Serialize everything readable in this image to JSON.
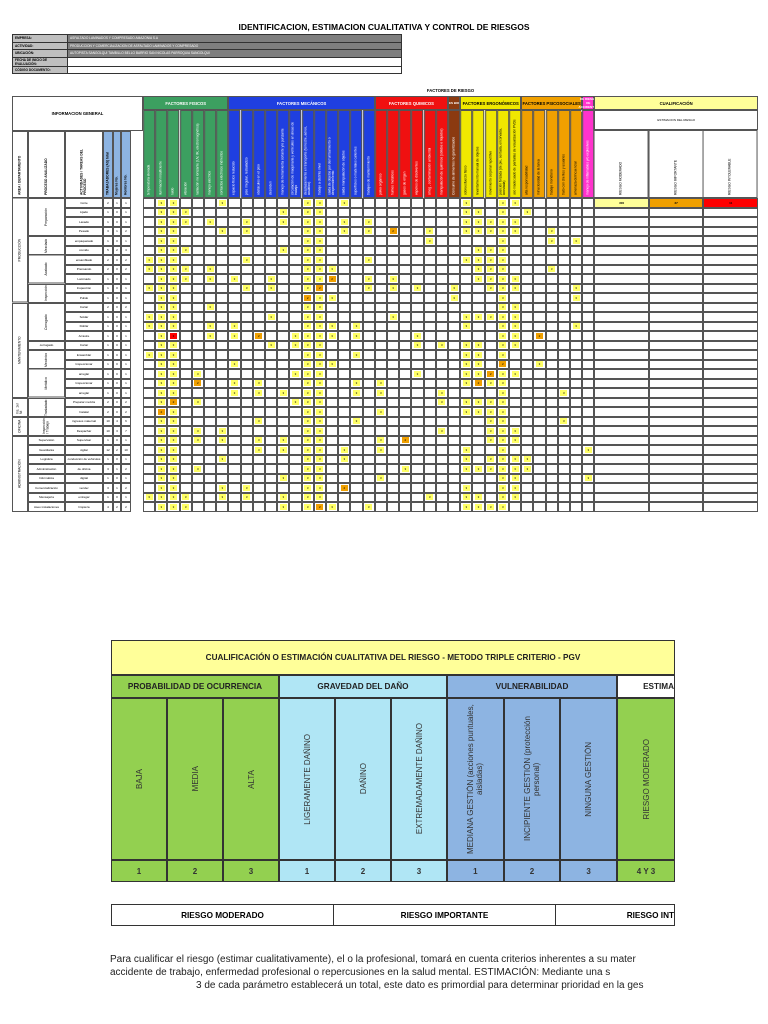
{
  "title": "IDENTIFICACION, ESTIMACION CUALITATIVA Y  CONTROL DE RIESGOS",
  "info_rows": [
    {
      "key": "EMPRESA:",
      "value": "ASFALTADO LAMINADOS Y COMPRESADO AMAZONIA S.A"
    },
    {
      "key": "ACTIVIDAD:",
      "value": "PRODUCCION Y COMERCIALIZACION DE ASFALTADO LAMINADOS Y COMPRESADO"
    },
    {
      "key": "UBICACIÓN:",
      "value": "AUTOPISTA SANGOLQUI TAMBILLO BELLO BARRIO SAN NICOLAS PARROQUIA SANGOLQUI"
    },
    {
      "key": "FECHA DE INICIO DE EVALUACIÓN:",
      "value": ""
    },
    {
      "key": "CÓDIGO DOCUMENTO:",
      "value": ""
    }
  ],
  "matrix": {
    "factores_title": "FACTORES DE RIESGO",
    "info_general": "INFORMACION GENERAL",
    "cualificacion": "CUALIFICACIÓN",
    "estimacion": "ESTIMACION DEL RIESGO",
    "left_headers": [
      "AREA / DEPARTAMENTO",
      "PROCESO ANALIZADO",
      "ACTIVIDADES / TAREAS DEL PROCESO",
      "TRABAJADORES (AS) total",
      "Mujeres No.",
      "Hombres No."
    ],
    "groups": [
      {
        "name": "FACTORES FISICOS",
        "color": "#3c9f60",
        "cols": [
          "temperatura elevada",
          "iluminación insuficiente",
          "ruido",
          "vibración",
          "radiación no ionizante (UV, IR, electromagnética)",
          "manejo eléctrico",
          "contactos eléctricos indirectos"
        ]
      },
      {
        "name": "FACTORES MECÁNICOS",
        "color": "#1f3fe0",
        "cols": [
          "espacio físico reducido",
          "piso irregular, resbaladizo",
          "obstáculos en el piso",
          "desorden",
          "manejo de herramienta cortante y/o punzante",
          "circulación de maquinaria y vehículos en áreas de trabajo",
          "desplazamiento en transporte (terrestre, aéreo, acuático)",
          "trabajo a distinto nivel",
          "caída de objetos por derrumbamiento o desprendimiento",
          "caída manipulación de objetos",
          "superficies o materiales calientes",
          "trabajos de mantenimiento"
        ]
      },
      {
        "name": "FACTORES QUIMICOS",
        "color": "#f01010",
        "cols": [
          "polvo orgánico",
          "humos metálicos",
          "gases de origen",
          "vapores de disolventes",
          "smog , contaminación ambiental",
          "manipulación de químicos (sólidos o líquidos)"
        ]
      },
      {
        "name": "ES BIO",
        "color": "#8b3a10",
        "cols": [
          "Consumo de alimentos no garantizados"
        ]
      },
      {
        "name": "FACTORES ERGONÓMICOS",
        "color": "#f0e800",
        "cols": [
          "sobreesfuerzo físico",
          "levantamiento manual de objetos",
          "movimiento corporal repetitivo",
          "posición forzada (de pie, sentada, encorvada, acostada)",
          "uso inadecuado de pantallas de visualización PVDs"
        ]
      },
      {
        "name": "FACTORES PSICOSOCIALES",
        "color": "#f0a000",
        "cols": [
          "alta responsabilidad",
          "minuciosidad de la tarea",
          "trabajo monótono",
          "trato con clientes y usuarios",
          "amenaza delincuencial"
        ]
      },
      {
        "name": "FACTORES DE RIESGO DE ACCIDENTES MAYORES",
        "color": "#ff33cc",
        "cols": [
          "manejo de inflamables y/o explosivos"
        ]
      }
    ],
    "estim_cols": [
      "RIESGO MODERADO",
      "RIESGO IMPORTANTE",
      "RIESGO INTOLERABLE"
    ],
    "estim_values": [
      "300",
      "27",
      "11"
    ],
    "areas": [
      {
        "name": "PRODUCCIÓN",
        "rows": 11
      },
      {
        "name": "MANTENIMIENTO",
        "rows": 10
      },
      {
        "name": "Ins. 1er Nt",
        "rows": 2
      },
      {
        "name": "OFICINA",
        "rows": 2
      },
      {
        "name": "ADMINISTRACIÓN",
        "rows": 8
      }
    ],
    "processes": [
      {
        "name": "Preparación",
        "rows": 4
      },
      {
        "name": "Mezclado",
        "rows": 2
      },
      {
        "name": "Acabado",
        "rows": 3
      },
      {
        "name": "Inspección",
        "rows": 2
      },
      {
        "name": "Corrugado",
        "rows": 4
      },
      {
        "name": "corrugado",
        "rows": 1
      },
      {
        "name": "Mecánico",
        "rows": 2
      },
      {
        "name": "Metálico",
        "rows": 3
      },
      {
        "name": "Trasladado",
        "rows": 2
      },
      {
        "name": "Inspección / Trabajo",
        "rows": 2
      },
      {
        "name": "Supervisión",
        "rows": 1
      },
      {
        "name": "Guardianía",
        "rows": 1
      },
      {
        "name": "Logística",
        "rows": 1
      },
      {
        "name": "Administración",
        "rows": 1
      },
      {
        "name": "Informática",
        "rows": 1
      },
      {
        "name": "Comercialización",
        "rows": 1
      },
      {
        "name": "Mensajería",
        "rows": 1
      },
      {
        "name": "Aseo instalaciones",
        "rows": 1
      }
    ],
    "activities": [
      "Corte",
      "Lijado",
      "Lavado",
      "Pesado",
      "empaquetado",
      "comido",
      "ensamblado",
      "Prensando",
      "Laminado",
      "Inspección",
      "Pulido",
      "Cortar",
      "Soldar",
      "Doblar",
      "Arrastre",
      "Cortar",
      "Ensamblar",
      "Inspeccionar",
      "arreglar",
      "Inspeccionar",
      "arreglar",
      "Preparar mezcla",
      "Instalar",
      "ingresos maternal",
      "Despachar",
      "Supervisar",
      "vigilar",
      "conducción de vehículos",
      "de oficina",
      "digital",
      "vender",
      "entregar",
      "limpieza"
    ],
    "workers": [
      [
        "2",
        "1",
        "1"
      ],
      [
        "1",
        "0",
        "1"
      ],
      [
        "1",
        "0",
        "1"
      ],
      [
        "3",
        "1",
        "2"
      ],
      [
        "1",
        "0",
        "1"
      ],
      [
        "5",
        "2",
        "3"
      ],
      [
        "2",
        "0",
        "2"
      ],
      [
        "2",
        "0",
        "2"
      ],
      [
        "1",
        "0",
        "1"
      ],
      [
        "1",
        "0",
        "1"
      ],
      [
        "1",
        "0",
        "1"
      ],
      [
        "2",
        "0",
        "2"
      ],
      [
        "1",
        "0",
        "1"
      ],
      [
        "1",
        "0",
        "1"
      ],
      [
        "1",
        "0",
        "1"
      ],
      [
        "1",
        "0",
        "1"
      ],
      [
        "1",
        "0",
        "1"
      ],
      [
        "1",
        "0",
        "1"
      ],
      [
        "1",
        "0",
        "1"
      ],
      [
        "1",
        "0",
        "1"
      ],
      [
        "1",
        "0",
        "1"
      ],
      [
        "2",
        "0",
        "2"
      ],
      [
        "2",
        "0",
        "2"
      ],
      [
        "10",
        "4",
        "6"
      ],
      [
        "10",
        "3",
        "7"
      ],
      [
        "1",
        "0",
        "1"
      ],
      [
        "12",
        "2",
        "10"
      ],
      [
        "1",
        "0",
        "1"
      ],
      [
        "3",
        "1",
        "2"
      ],
      [
        "1",
        "0",
        "1"
      ],
      [
        "3",
        "1",
        "2"
      ],
      [
        "1",
        "0",
        "1"
      ],
      [
        "4",
        "2",
        "2"
      ]
    ],
    "hazard_mark": "3",
    "hazard_mark_alt": "2"
  },
  "calificacion": {
    "title": "CUALIFICACIÓN O ESTIMACIÓN CUALITATIVA DEL RIESGO - METODO TRIPLE CRITERIO - PGV",
    "groups": [
      {
        "name": "PROBABILIDAD DE OCURRENCIA",
        "color": "#93d050",
        "items": [
          {
            "label": "BAJA",
            "score": "1"
          },
          {
            "label": "MEDIA",
            "score": "2"
          },
          {
            "label": "ALTA",
            "score": "3"
          }
        ]
      },
      {
        "name": "GRAVEDAD DEL DAÑO",
        "color": "#b0e6f5",
        "items": [
          {
            "label": "LIGERAMENTE DAÑINO",
            "score": "1"
          },
          {
            "label": "DAÑINO",
            "score": "2"
          },
          {
            "label": "EXTREMADAMENTE DAÑINO",
            "score": "3"
          }
        ]
      },
      {
        "name": "VULNERABILIDAD",
        "color": "#8db4e2",
        "items": [
          {
            "label": "MEDIANA GESTIÓN (acciones puntuales, aisladas)",
            "score": "1"
          },
          {
            "label": "INCIPIENTE GESTIÓN (protección personal)",
            "score": "2"
          },
          {
            "label": "NINGUNA GESTIÓN",
            "score": "3"
          }
        ]
      },
      {
        "name": "ESTIMA",
        "color": "#ffffff",
        "items": [
          {
            "label": "RIESGO MODERADO",
            "score": "4 Y 3"
          }
        ]
      }
    ]
  },
  "legend": [
    "RIESGO MODERADO",
    "RIESGO IMPORTANTE",
    "RIESGO INT"
  ],
  "paragraph": [
    "Para cualificar el riesgo (estimar cualitativamente), el o la profesional, tomará en cuenta criterios inherentes a su mater",
    "accidente de trabajo, enfermedad profesional o repercusiones en la salud mental.        ESTIMACIÓN: Mediante una s",
    "3 de cada parámetro establecerá un total, este dato es primordial para determinar prioridad en la ges"
  ],
  "colors": {
    "yellow": "#ffff66",
    "orange": "#f0a000",
    "red": "#ff0000",
    "header_yellow": "#ffff99"
  }
}
